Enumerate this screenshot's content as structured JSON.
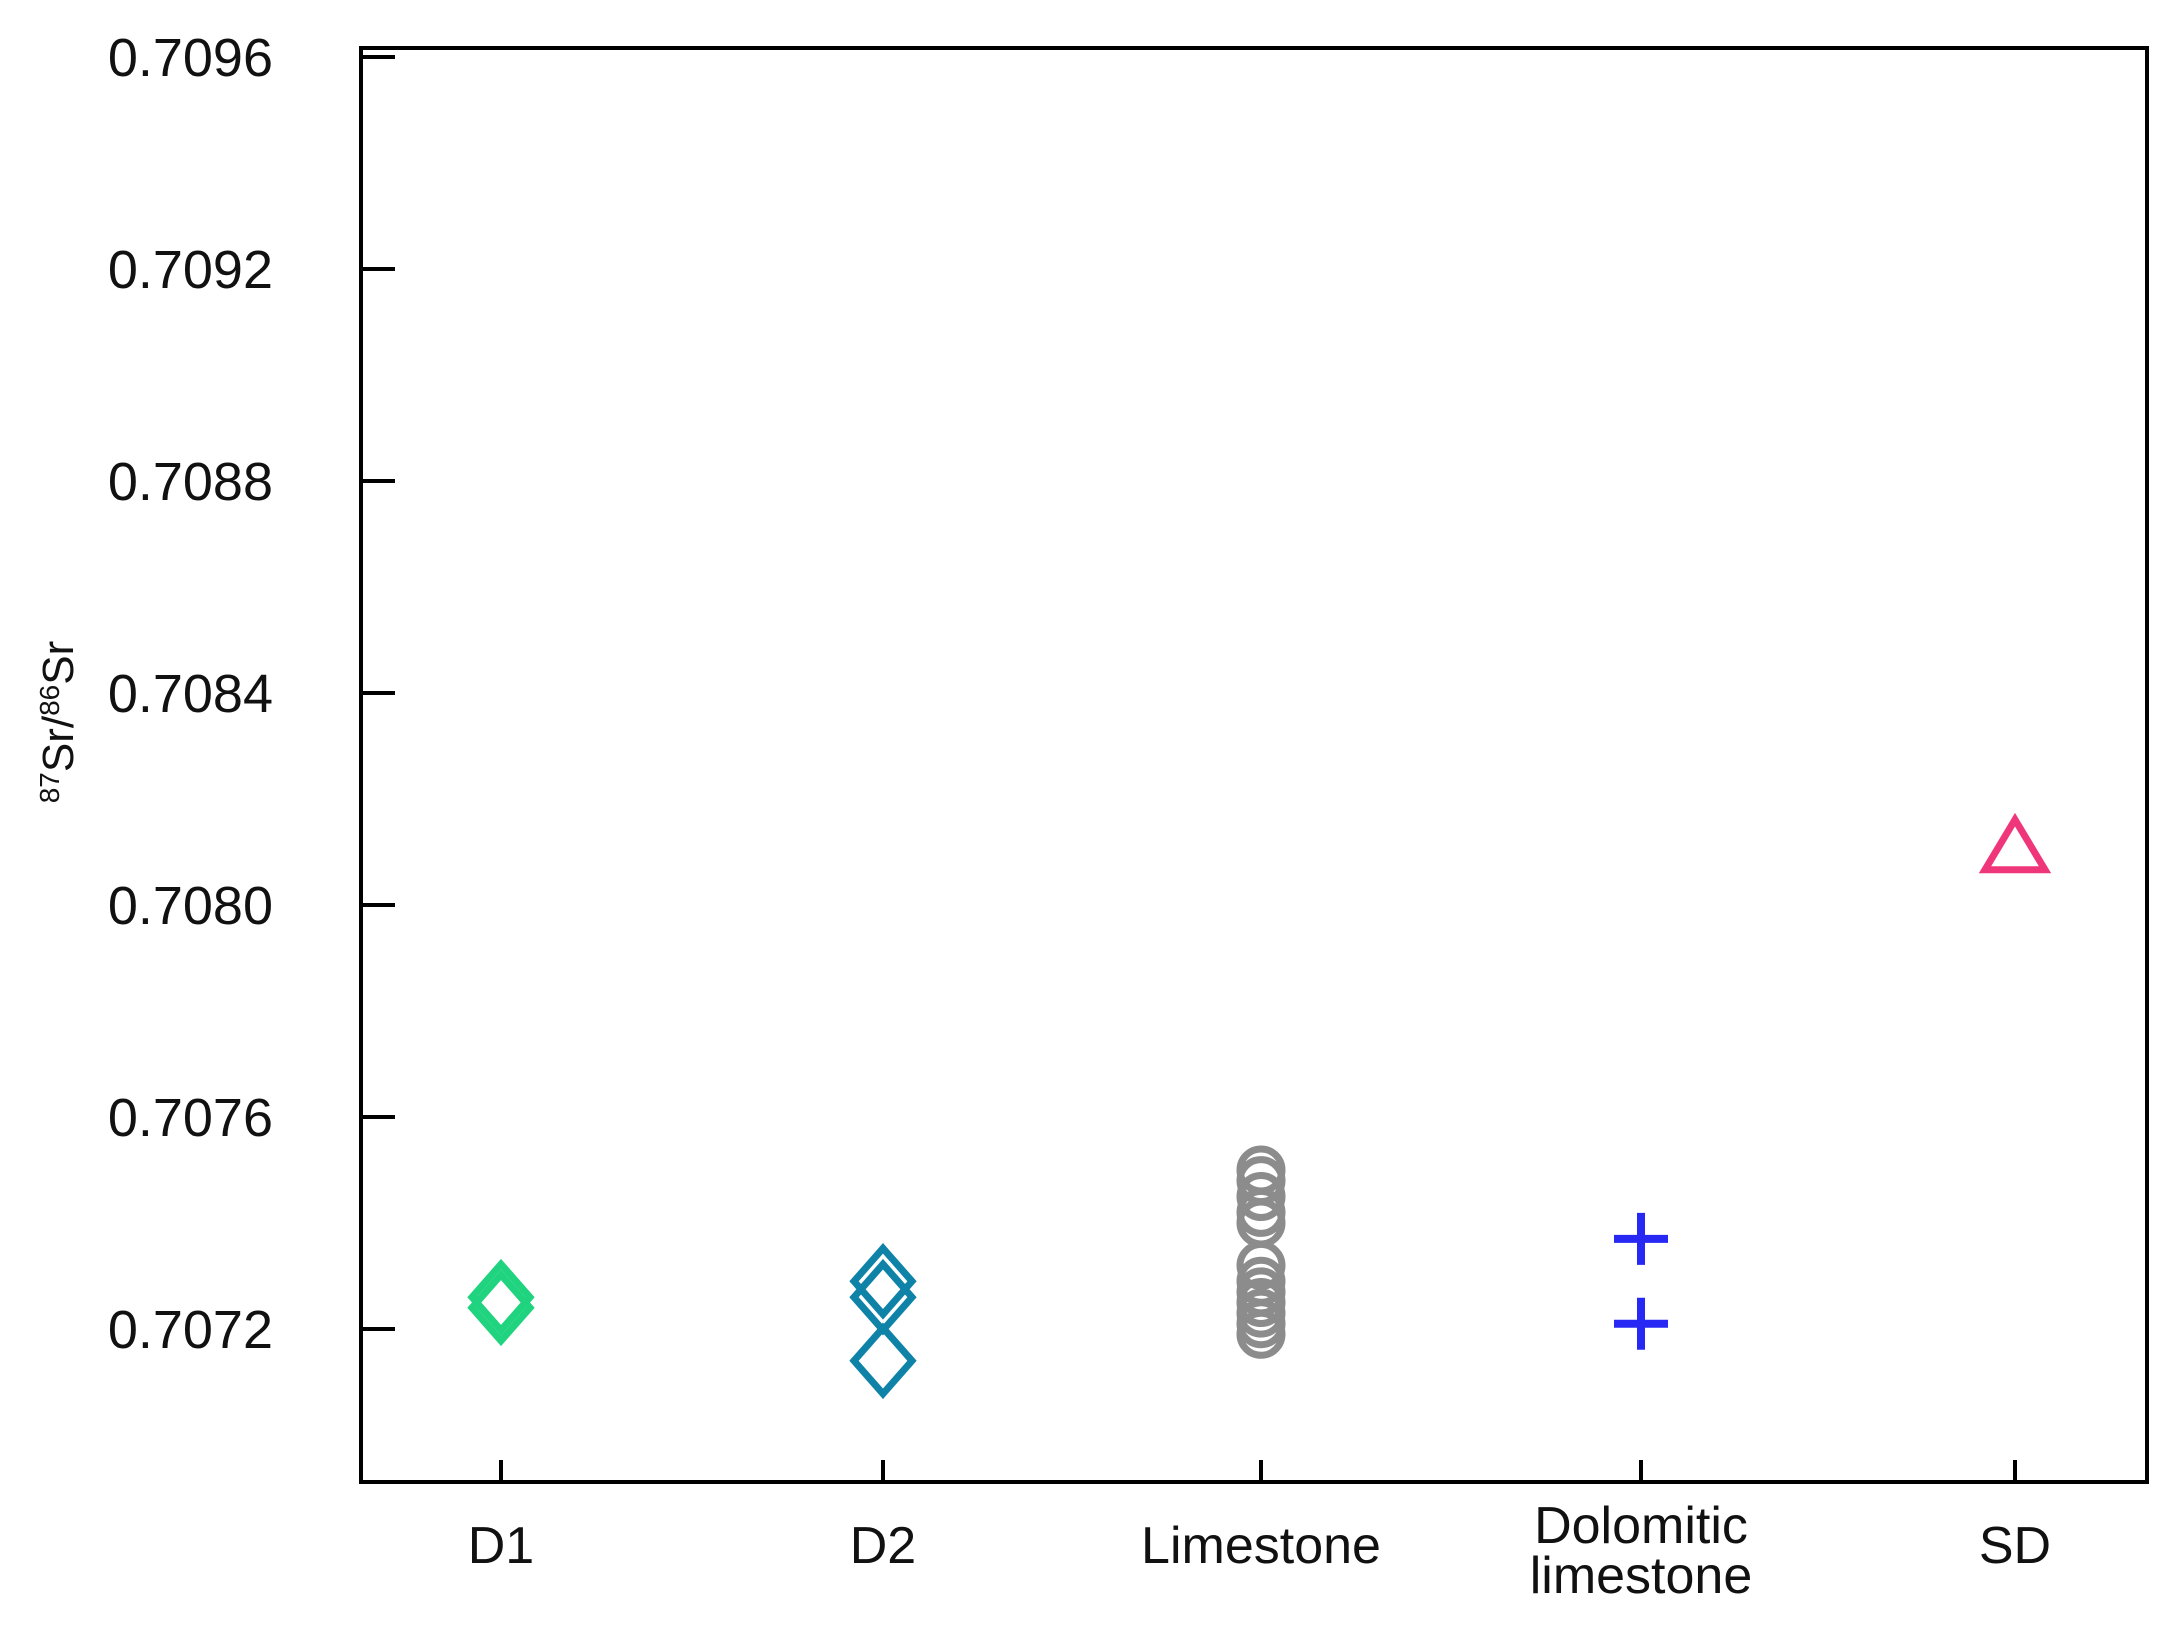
{
  "chart_data": {
    "type": "scatter",
    "title": "",
    "xlabel": "",
    "ylabel": {
      "iso1_mass": "87",
      "iso1_sym": "Sr",
      "sep": "/",
      "iso2_mass": "86",
      "iso2_sym": "Sr"
    },
    "ylim": [
      0.7069,
      0.7096
    ],
    "yticks": [
      "0.7072",
      "0.7076",
      "0.7080",
      "0.7084",
      "0.7088",
      "0.7092",
      "0.7096"
    ],
    "categories": [
      [
        "D1"
      ],
      [
        "D2"
      ],
      [
        "Limestone"
      ],
      [
        "Dolomitic",
        "limestone"
      ],
      [
        "SD"
      ]
    ],
    "grid": false,
    "series": [
      {
        "category_index": 0,
        "marker": "diamond",
        "color": "#1fd37f",
        "values": [
          0.70726,
          0.70724
        ]
      },
      {
        "category_index": 1,
        "marker": "diamond",
        "color": "#0f82a8",
        "values": [
          0.70729,
          0.70726,
          0.70714
        ]
      },
      {
        "category_index": 2,
        "marker": "circle",
        "color": "#8c8c8c",
        "values": [
          0.7075,
          0.70748,
          0.70745,
          0.70742,
          0.7074,
          0.70732,
          0.70729,
          0.70727,
          0.70725,
          0.70723,
          0.70721,
          0.70719
        ]
      },
      {
        "category_index": 3,
        "marker": "plus",
        "color": "#2828f5",
        "values": [
          0.70737,
          0.70721
        ]
      },
      {
        "category_index": 4,
        "marker": "triangle",
        "color": "#f0367a",
        "values": [
          0.70811
        ]
      }
    ]
  }
}
